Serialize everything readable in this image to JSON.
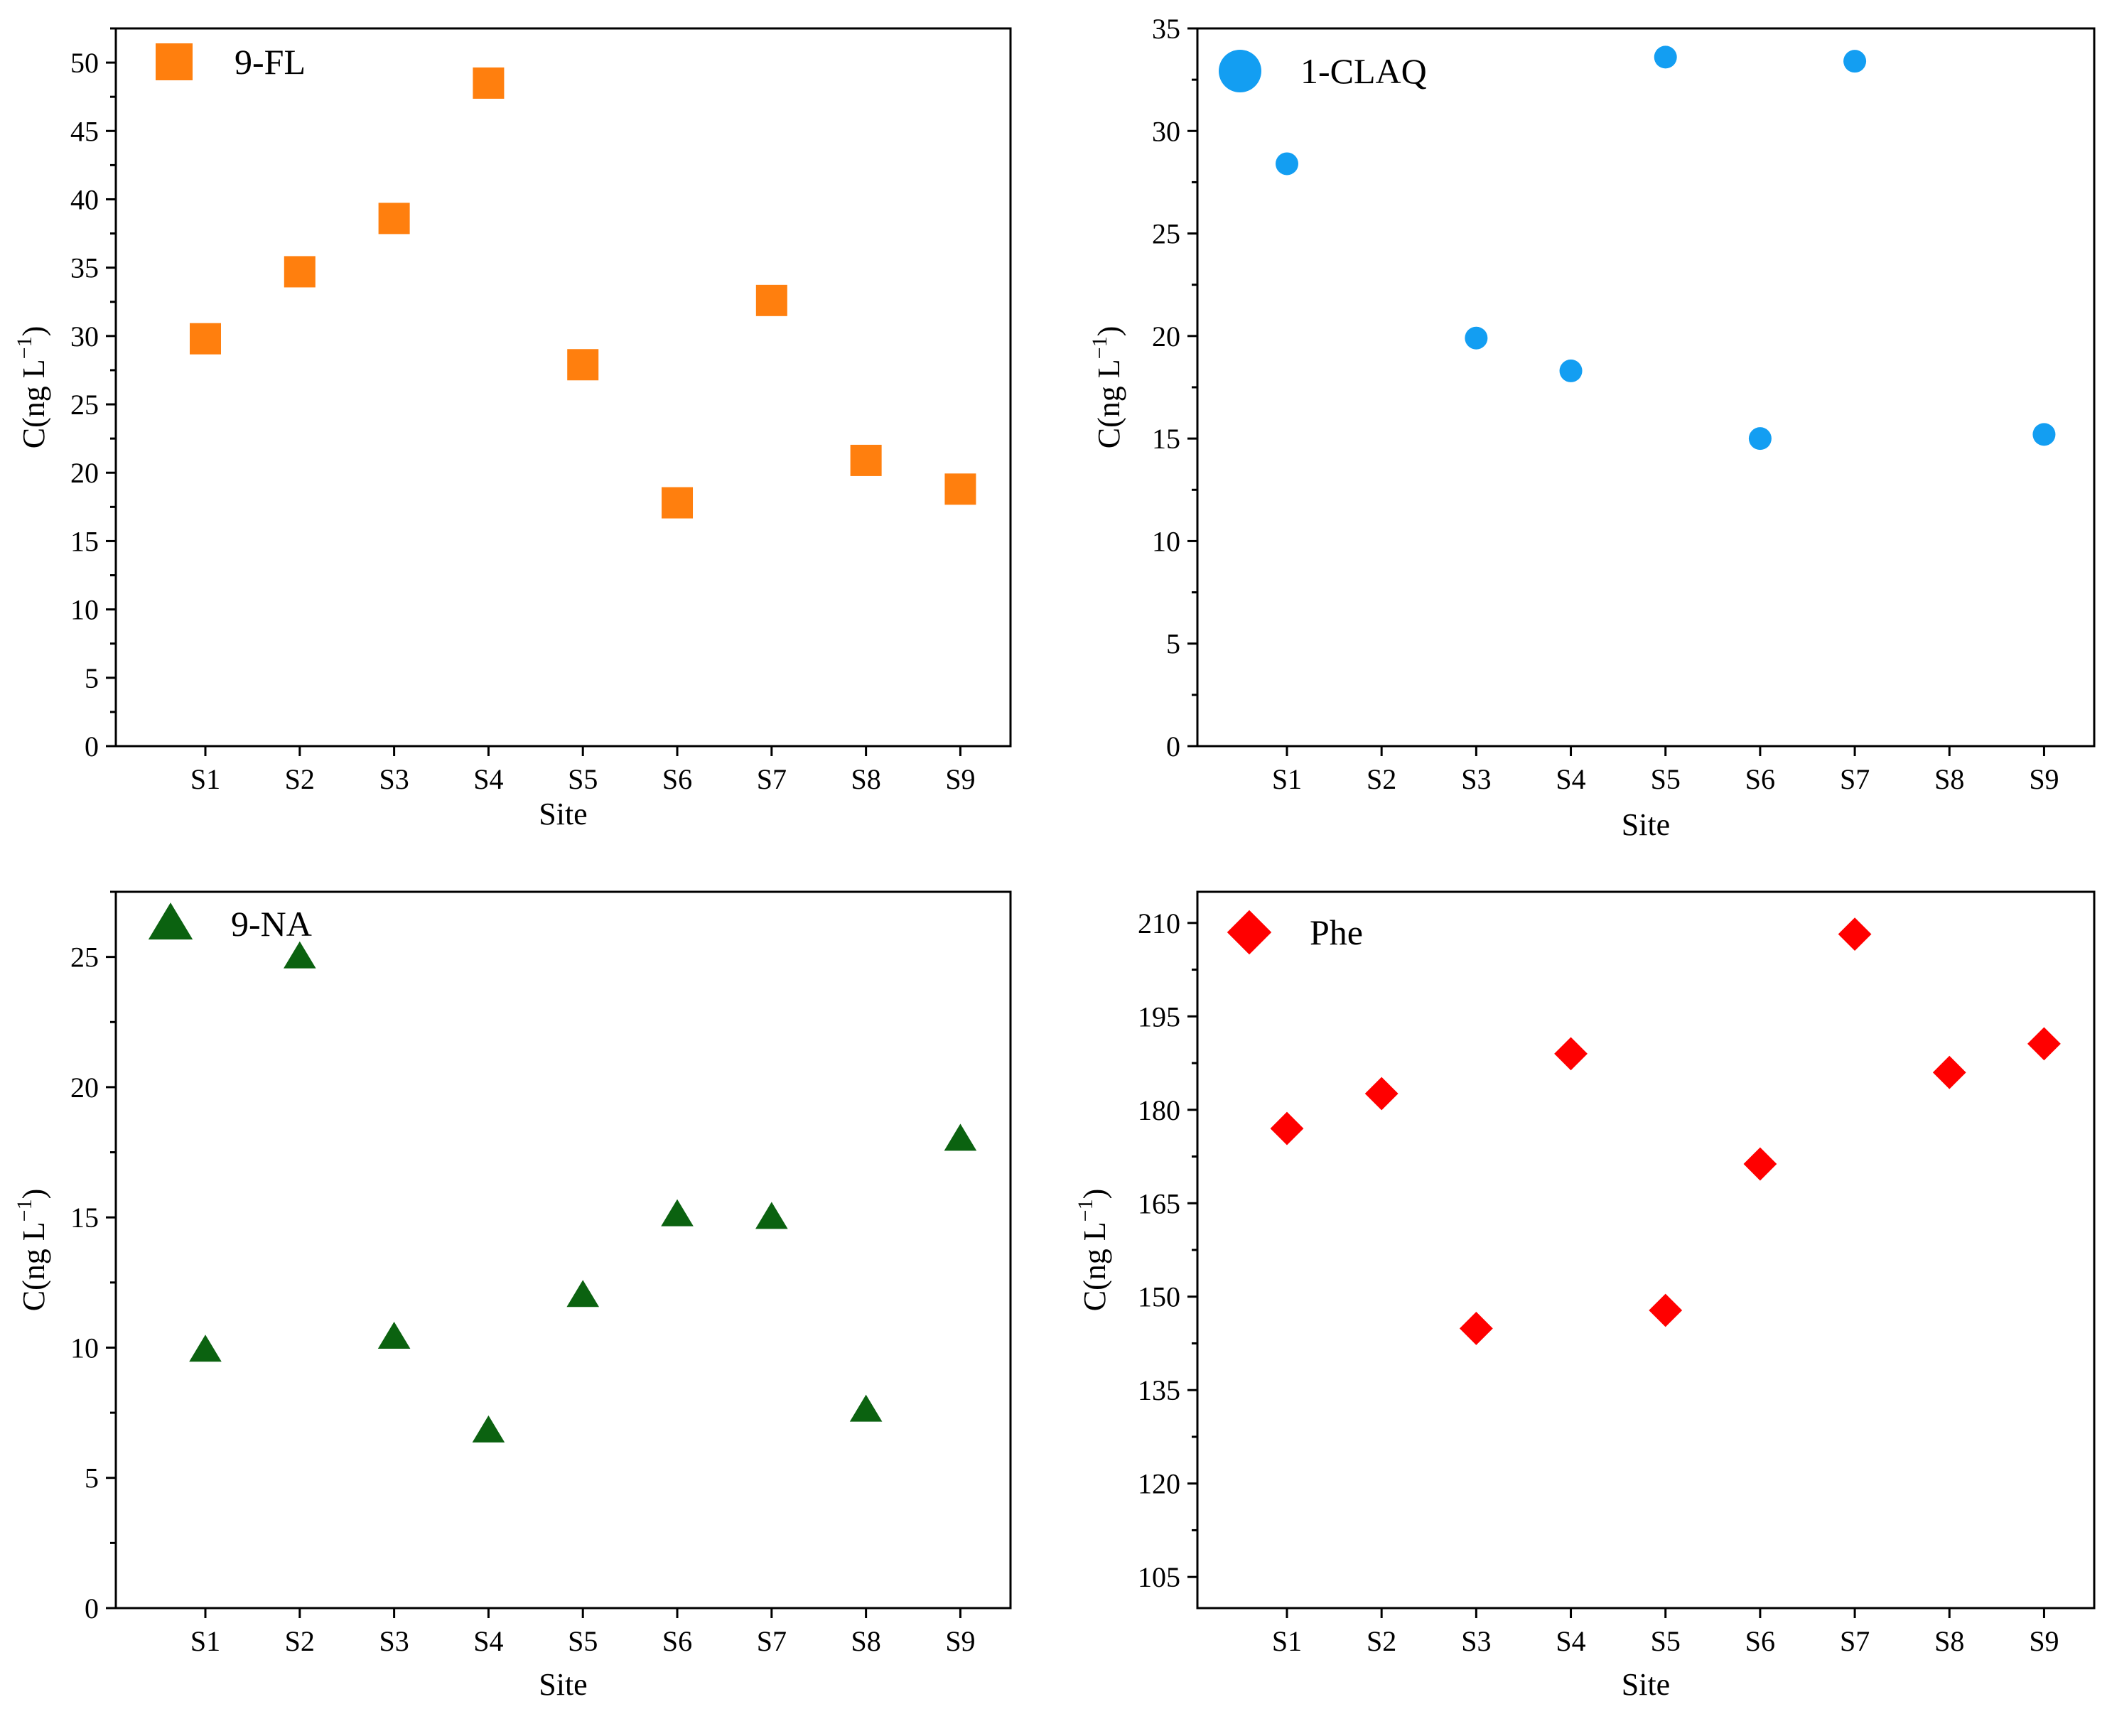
{
  "chart_data": [
    {
      "type": "scatter",
      "panel": "top-left",
      "categories": [
        "S1",
        "S2",
        "S3",
        "S4",
        "S5",
        "S6",
        "S7",
        "S8",
        "S9"
      ],
      "series": [
        {
          "name": "9-FL",
          "values": [
            29.8,
            34.7,
            38.6,
            48.5,
            27.9,
            17.8,
            32.6,
            20.9,
            18.8
          ]
        }
      ],
      "marker": "square",
      "color": "#FF7F0E",
      "xlabel": "Site",
      "ylabel": "C(ng L",
      "ylabel_sup": "−1",
      "ylabel_close": ")",
      "ylim": [
        0,
        52.5
      ],
      "yticks": [
        "0",
        "5",
        "10",
        "15",
        "20",
        "25",
        "30",
        "35",
        "40",
        "45",
        "50"
      ],
      "ytick_values": [
        0,
        5,
        10,
        15,
        20,
        25,
        30,
        35,
        40,
        45,
        50
      ],
      "legend": "top-left"
    },
    {
      "type": "scatter",
      "panel": "top-right",
      "categories": [
        "S1",
        "S2",
        "S3",
        "S4",
        "S5",
        "S6",
        "S7",
        "S8",
        "S9"
      ],
      "series": [
        {
          "name": "1-CLAQ",
          "values": [
            28.4,
            null,
            19.9,
            18.3,
            33.6,
            15.0,
            33.4,
            null,
            15.2
          ]
        }
      ],
      "marker": "circle",
      "color": "#139EF2",
      "xlabel": "Site",
      "ylabel": "C(ng L",
      "ylabel_sup": "−1",
      "ylabel_close": ")",
      "ylim": [
        0,
        35
      ],
      "yticks": [
        "0",
        "5",
        "10",
        "15",
        "20",
        "25",
        "30",
        "35"
      ],
      "ytick_values": [
        0,
        5,
        10,
        15,
        20,
        25,
        30,
        35
      ],
      "legend": "top-left"
    },
    {
      "type": "scatter",
      "panel": "bottom-left",
      "categories": [
        "S1",
        "S2",
        "S3",
        "S4",
        "S5",
        "S6",
        "S7",
        "S8",
        "S9"
      ],
      "series": [
        {
          "name": "9-NA",
          "values": [
            9.9,
            25.0,
            10.4,
            6.8,
            12.0,
            15.1,
            15.0,
            7.6,
            18.0
          ]
        }
      ],
      "marker": "triangle",
      "color": "#0B6210",
      "xlabel": "Site",
      "ylabel": "C(ng L",
      "ylabel_sup": "−1",
      "ylabel_close": ")",
      "ylim": [
        0,
        27.5
      ],
      "yticks": [
        "0",
        "5",
        "10",
        "15",
        "20",
        "25"
      ],
      "ytick_values": [
        0,
        5,
        10,
        15,
        20,
        25
      ],
      "legend": "top-left"
    },
    {
      "type": "scatter",
      "panel": "bottom-right",
      "categories": [
        "S1",
        "S2",
        "S3",
        "S4",
        "S5",
        "S6",
        "S7",
        "S8",
        "S9"
      ],
      "series": [
        {
          "name": "Phe",
          "values": [
            177,
            182.6,
            144.9,
            189,
            147.8,
            171.3,
            208.2,
            186,
            190.6
          ]
        }
      ],
      "marker": "diamond",
      "color": "#FF0000",
      "xlabel": "Site",
      "ylabel": "C(ng L",
      "ylabel_sup": "−1",
      "ylabel_close": ")",
      "ylim": [
        100,
        215
      ],
      "yticks": [
        "105",
        "120",
        "135",
        "150",
        "165",
        "180",
        "195",
        "210"
      ],
      "ytick_values": [
        105,
        120,
        135,
        150,
        165,
        180,
        195,
        210
      ],
      "legend": "top-left"
    }
  ]
}
